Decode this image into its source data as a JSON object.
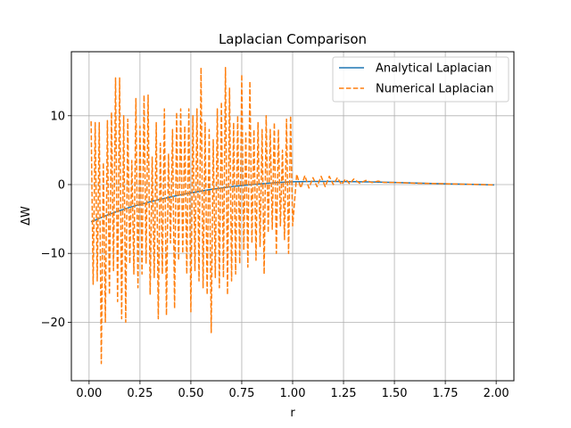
{
  "chart_data": {
    "type": "line",
    "title": "Laplacian Comparison",
    "xlabel": "r",
    "ylabel": "ΔW",
    "xlim": [
      -0.087,
      2.087
    ],
    "ylim": [
      -28.5,
      19.3
    ],
    "xticks": [
      0.0,
      0.25,
      0.5,
      0.75,
      1.0,
      1.25,
      1.5,
      1.75,
      2.0
    ],
    "xtick_labels": [
      "0.00",
      "0.25",
      "0.50",
      "0.75",
      "1.00",
      "1.25",
      "1.50",
      "1.75",
      "2.00"
    ],
    "yticks": [
      10,
      0,
      -10,
      -20
    ],
    "ytick_labels": [
      "10",
      "0",
      "−10",
      "−20"
    ],
    "grid": true,
    "legend_position": "top-right",
    "series": [
      {
        "name": "Analytical Laplacian",
        "color": "#1f77b4",
        "style": "solid",
        "x": [
          0.01,
          0.1,
          0.2,
          0.3,
          0.4,
          0.5,
          0.6,
          0.7,
          0.8,
          0.9,
          1.0,
          1.1,
          1.2,
          1.3,
          1.4,
          1.5,
          1.6,
          1.7,
          1.8,
          1.9,
          1.99
        ],
        "y": [
          -5.4,
          -4.3,
          -3.3,
          -2.5,
          -1.8,
          -1.2,
          -0.7,
          -0.3,
          0.0,
          0.25,
          0.4,
          0.45,
          0.45,
          0.42,
          0.37,
          0.3,
          0.22,
          0.15,
          0.08,
          0.02,
          -0.05
        ]
      },
      {
        "name": "Numerical Laplacian",
        "color": "#ff7f0e",
        "style": "dashed",
        "x": [
          0.01,
          0.02,
          0.03,
          0.04,
          0.05,
          0.06,
          0.07,
          0.08,
          0.09,
          0.1,
          0.11,
          0.12,
          0.13,
          0.14,
          0.15,
          0.16,
          0.17,
          0.18,
          0.19,
          0.2,
          0.21,
          0.22,
          0.23,
          0.24,
          0.25,
          0.26,
          0.27,
          0.28,
          0.29,
          0.3,
          0.31,
          0.32,
          0.33,
          0.34,
          0.35,
          0.36,
          0.37,
          0.38,
          0.39,
          0.4,
          0.41,
          0.42,
          0.43,
          0.44,
          0.45,
          0.46,
          0.47,
          0.48,
          0.49,
          0.5,
          0.51,
          0.52,
          0.53,
          0.54,
          0.55,
          0.56,
          0.57,
          0.58,
          0.59,
          0.6,
          0.61,
          0.62,
          0.63,
          0.64,
          0.65,
          0.66,
          0.67,
          0.68,
          0.69,
          0.7,
          0.71,
          0.72,
          0.73,
          0.74,
          0.75,
          0.76,
          0.77,
          0.78,
          0.79,
          0.8,
          0.81,
          0.82,
          0.83,
          0.84,
          0.85,
          0.86,
          0.87,
          0.88,
          0.89,
          0.9,
          0.91,
          0.92,
          0.93,
          0.94,
          0.95,
          0.96,
          0.97,
          0.98,
          0.99,
          1.0,
          1.02,
          1.04,
          1.06,
          1.08,
          1.1,
          1.12,
          1.14,
          1.16,
          1.18,
          1.2,
          1.22,
          1.24,
          1.26,
          1.28,
          1.3,
          1.33,
          1.36,
          1.39,
          1.42,
          1.45,
          1.5,
          1.6,
          1.7,
          1.8,
          1.9,
          1.99
        ],
        "y": [
          9.2,
          -14.5,
          9.0,
          -14.0,
          9.0,
          -26.0,
          3.2,
          -20.0,
          9.3,
          -16.0,
          10.5,
          -12.5,
          15.5,
          -17.0,
          15.5,
          -19.5,
          10.0,
          -20.0,
          9.5,
          -11.5,
          3.5,
          -13.0,
          12.5,
          -15.0,
          8.5,
          -13.0,
          13.0,
          -11.5,
          13.0,
          -16.0,
          4.0,
          -13.5,
          9.0,
          -19.5,
          6.0,
          -13.0,
          11.0,
          -19.0,
          4.5,
          -8.5,
          8.0,
          -18.0,
          10.5,
          -11.0,
          11.0,
          -10.0,
          8.5,
          -13.0,
          11.0,
          -18.5,
          10.0,
          -12.5,
          11.0,
          -14.0,
          17.0,
          -15.0,
          9.0,
          -16.0,
          8.0,
          -21.5,
          6.5,
          -13.5,
          11.0,
          -15.0,
          12.0,
          -13.5,
          17.0,
          -16.0,
          14.0,
          -14.0,
          9.0,
          -13.0,
          10.0,
          -11.5,
          16.0,
          -9.5,
          7.5,
          -12.0,
          15.0,
          -8.5,
          8.0,
          -11.0,
          9.0,
          -9.0,
          8.0,
          -13.0,
          10.0,
          -7.0,
          8.0,
          -6.5,
          9.0,
          -10.0,
          8.0,
          -6.0,
          5.0,
          -8.0,
          9.5,
          -10.0,
          10.0,
          -6.0,
          1.5,
          -0.5,
          1.3,
          -0.5,
          1.0,
          -0.3,
          1.2,
          -0.3,
          1.2,
          0.0,
          1.0,
          0.0,
          0.8,
          0.1,
          0.8,
          0.2,
          0.6,
          0.3,
          0.5,
          0.3,
          0.3,
          0.2,
          0.15,
          0.08,
          0.02,
          -0.05
        ]
      }
    ]
  }
}
